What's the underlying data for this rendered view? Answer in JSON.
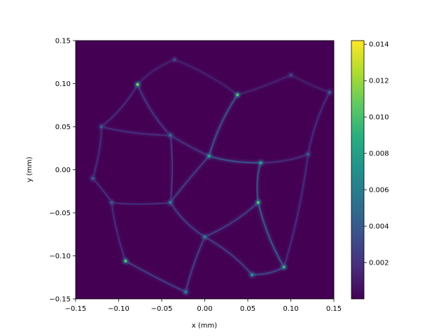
{
  "chart_data": {
    "type": "heatmap",
    "title": "",
    "xlabel": "x (mm)",
    "ylabel": "y (mm)",
    "xlim": [
      -0.15,
      0.15
    ],
    "ylim": [
      -0.15,
      0.15
    ],
    "x_ticks": [
      "−0.15",
      "−0.10",
      "−0.05",
      "0.00",
      "0.05",
      "0.10",
      "0.15"
    ],
    "x_tick_values": [
      -0.15,
      -0.1,
      -0.05,
      0.0,
      0.05,
      0.1,
      0.15
    ],
    "y_ticks": [
      "−0.15",
      "−0.10",
      "−0.05",
      "0.00",
      "0.05",
      "0.10",
      "0.15"
    ],
    "y_tick_values": [
      -0.15,
      -0.1,
      -0.05,
      0.0,
      0.05,
      0.1,
      0.15
    ],
    "colormap": "viridis",
    "colorbar": {
      "range": [
        0.0,
        0.0142
      ],
      "ticks": [
        "0.002",
        "0.004",
        "0.006",
        "0.008",
        "0.010",
        "0.012",
        "0.014"
      ],
      "tick_values": [
        0.002,
        0.004,
        0.006,
        0.008,
        0.01,
        0.012,
        0.014
      ]
    },
    "background_level": 0.0003,
    "network_nodes": [
      {
        "id": "n1",
        "x": -0.078,
        "y": 0.099,
        "v": 0.011
      },
      {
        "id": "n2",
        "x": 0.038,
        "y": 0.087,
        "v": 0.01
      },
      {
        "id": "n3",
        "x": -0.12,
        "y": 0.05,
        "v": 0.004
      },
      {
        "id": "n4",
        "x": -0.04,
        "y": 0.04,
        "v": 0.005
      },
      {
        "id": "n5",
        "x": 0.005,
        "y": 0.016,
        "v": 0.008
      },
      {
        "id": "n6",
        "x": 0.065,
        "y": 0.008,
        "v": 0.008
      },
      {
        "id": "n7",
        "x": -0.13,
        "y": -0.01,
        "v": 0.004
      },
      {
        "id": "n8",
        "x": -0.04,
        "y": -0.038,
        "v": 0.006
      },
      {
        "id": "n9",
        "x": 0.062,
        "y": -0.038,
        "v": 0.01
      },
      {
        "id": "n10",
        "x": -0.108,
        "y": -0.038,
        "v": 0.004
      },
      {
        "id": "n11",
        "x": 0.0,
        "y": -0.078,
        "v": 0.006
      },
      {
        "id": "n12",
        "x": -0.092,
        "y": -0.106,
        "v": 0.01
      },
      {
        "id": "n13",
        "x": 0.092,
        "y": -0.113,
        "v": 0.009
      },
      {
        "id": "n14",
        "x": -0.022,
        "y": -0.142,
        "v": 0.006
      },
      {
        "id": "n15",
        "x": 0.055,
        "y": -0.122,
        "v": 0.007
      },
      {
        "id": "n16",
        "x": 0.12,
        "y": 0.018,
        "v": 0.004
      },
      {
        "id": "n17",
        "x": 0.145,
        "y": 0.09,
        "v": 0.004
      },
      {
        "id": "n18",
        "x": -0.035,
        "y": 0.128,
        "v": 0.003
      },
      {
        "id": "n19",
        "x": 0.1,
        "y": 0.11,
        "v": 0.003
      }
    ],
    "network_edges": [
      [
        "n1",
        "n18"
      ],
      [
        "n1",
        "n3"
      ],
      [
        "n1",
        "n4"
      ],
      [
        "n18",
        "n2"
      ],
      [
        "n2",
        "n19"
      ],
      [
        "n19",
        "n17"
      ],
      [
        "n2",
        "n5"
      ],
      [
        "n4",
        "n5"
      ],
      [
        "n3",
        "n4"
      ],
      [
        "n3",
        "n7"
      ],
      [
        "n5",
        "n6"
      ],
      [
        "n6",
        "n16"
      ],
      [
        "n6",
        "n9"
      ],
      [
        "n7",
        "n10"
      ],
      [
        "n10",
        "n8"
      ],
      [
        "n8",
        "n4"
      ],
      [
        "n8",
        "n11"
      ],
      [
        "n11",
        "n9"
      ],
      [
        "n10",
        "n12"
      ],
      [
        "n12",
        "n14"
      ],
      [
        "n11",
        "n14"
      ],
      [
        "n11",
        "n15"
      ],
      [
        "n9",
        "n13"
      ],
      [
        "n13",
        "n15"
      ],
      [
        "n16",
        "n17"
      ],
      [
        "n13",
        "n16"
      ],
      [
        "n5",
        "n8"
      ]
    ]
  }
}
